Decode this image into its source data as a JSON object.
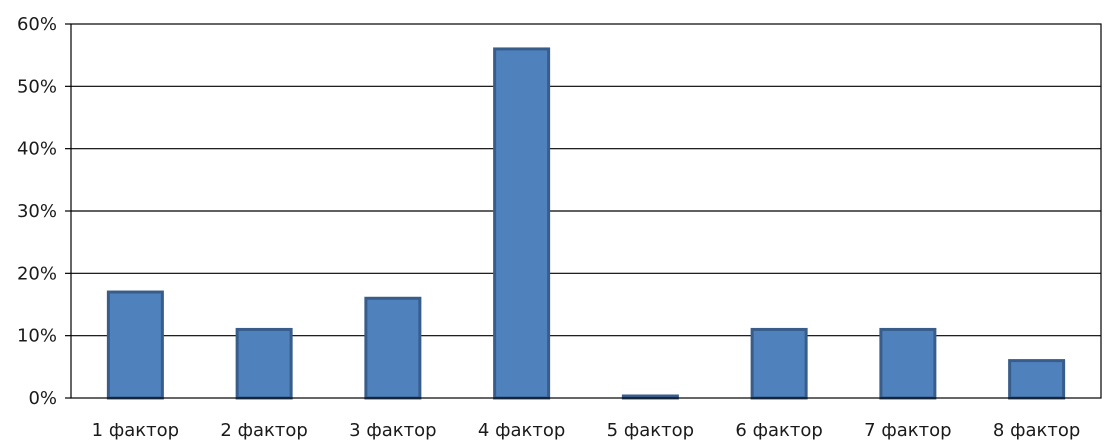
{
  "chart_data": {
    "type": "bar",
    "title": "",
    "xlabel": "",
    "ylabel": "",
    "categories": [
      "1 фактор",
      "2 фактор",
      "3 фактор",
      "4 фактор",
      "5 фактор",
      "6 фактор",
      "7 фактор",
      "8 фактор"
    ],
    "values": [
      17,
      11,
      16,
      56,
      0.3,
      11,
      11,
      6
    ],
    "ylim": [
      0,
      60
    ],
    "yticks": [
      0,
      10,
      20,
      30,
      40,
      50,
      60
    ],
    "ytick_labels": [
      "0%",
      "10%",
      "20%",
      "30%",
      "40%",
      "50%",
      "60%"
    ],
    "grid": true,
    "legend": "none",
    "colors": {
      "bar_fill": "#4f81bd",
      "bar_stroke": "#385d8a",
      "grid": "#000000",
      "frame": "#000000"
    }
  }
}
